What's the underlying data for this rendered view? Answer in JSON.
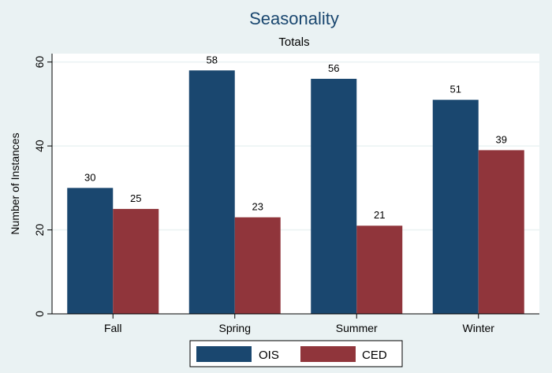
{
  "chart_data": {
    "type": "bar",
    "title": "Seasonality",
    "subtitle": "Totals",
    "xlabel": "",
    "ylabel": "Number of Instances",
    "categories": [
      "Fall",
      "Spring",
      "Summer",
      "Winter"
    ],
    "series": [
      {
        "name": "OIS",
        "values": [
          30,
          58,
          56,
          51
        ],
        "color": "#1a476f"
      },
      {
        "name": "CED",
        "values": [
          25,
          23,
          21,
          39
        ],
        "color": "#90353b"
      }
    ],
    "ylim": [
      0,
      62
    ],
    "yticks": [
      0,
      20,
      40,
      60
    ],
    "grid": true,
    "data_labels": true,
    "legend_position": "bottom"
  }
}
